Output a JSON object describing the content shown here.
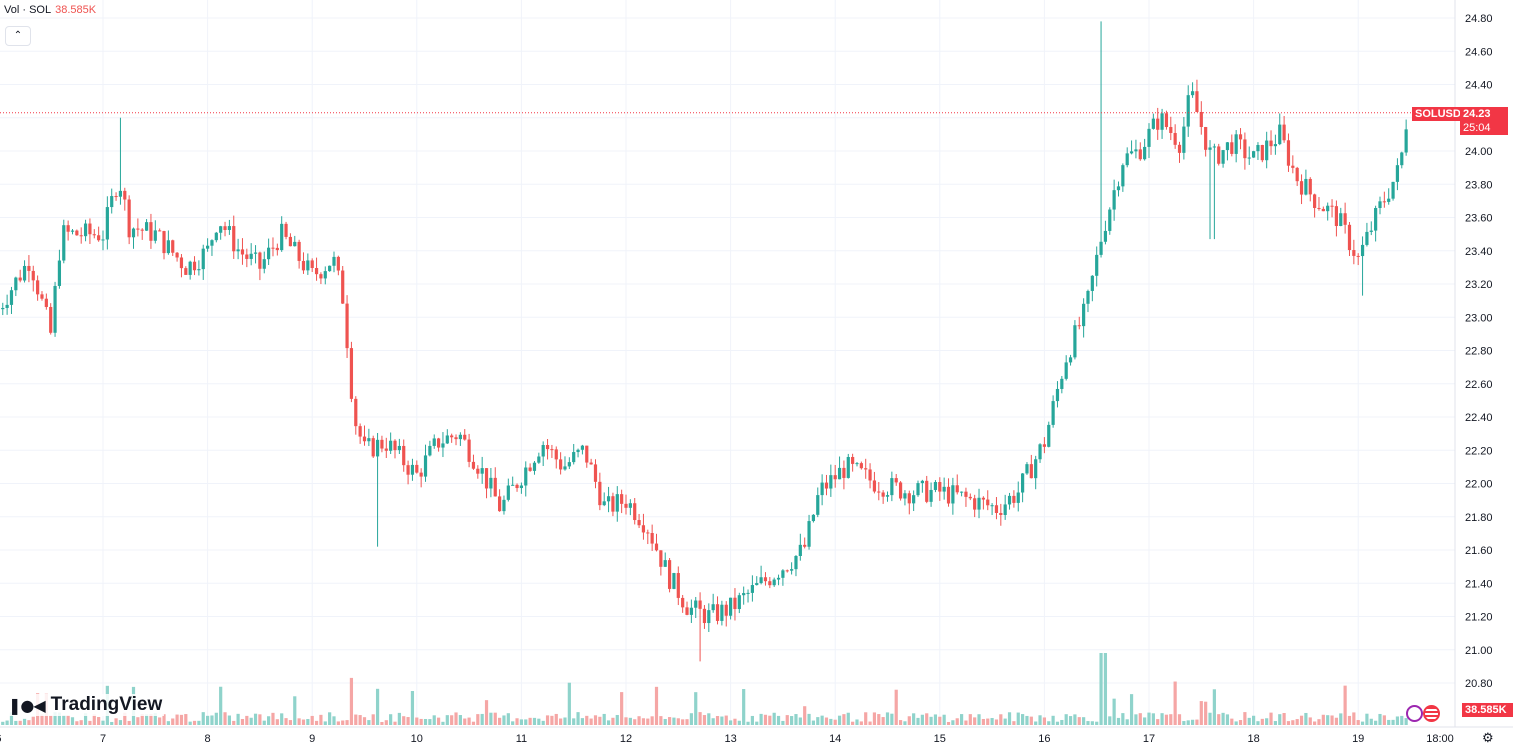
{
  "legend": {
    "label": "Vol · SOL",
    "value": "38.585K"
  },
  "collapse_icon": "chevron-up-icon",
  "logo": {
    "text": "TradingView",
    "icon": "tradingview-logo-icon"
  },
  "price_badge": {
    "symbol": "SOLUSD",
    "price": "24.23",
    "countdown": "25:04"
  },
  "volume_badge": "38.585K",
  "settings_icon": "gear-icon",
  "colors": {
    "up": "#26a69a",
    "down": "#ef5350",
    "up_vol": "#8fd3cb",
    "down_vol": "#f5a6a5",
    "grid": "#f0f3fa",
    "price_line": "#f23645"
  },
  "chart_data": {
    "type": "candlestick",
    "symbol": "SOLUSD",
    "y_ticks": [
      "24.80",
      "24.60",
      "24.40",
      "24.20",
      "24.00",
      "23.80",
      "23.60",
      "23.40",
      "23.20",
      "23.00",
      "22.80",
      "22.60",
      "22.40",
      "22.20",
      "22.00",
      "21.80",
      "21.60",
      "21.40",
      "21.20",
      "21.00",
      "20.80"
    ],
    "ylim": [
      20.8,
      24.8
    ],
    "x_ticks": [
      "6",
      "7",
      "8",
      "9",
      "10",
      "11",
      "12",
      "13",
      "14",
      "15",
      "16",
      "17",
      "18",
      "19",
      "18:00"
    ],
    "current_price": 24.23,
    "grid": true,
    "close_path": [
      [
        6.0,
        23.05
      ],
      [
        6.3,
        23.35
      ],
      [
        6.5,
        22.9
      ],
      [
        6.6,
        23.5
      ],
      [
        7.0,
        23.5
      ],
      [
        7.15,
        23.85
      ],
      [
        7.25,
        23.55
      ],
      [
        7.5,
        23.5
      ],
      [
        7.8,
        23.3
      ],
      [
        8.0,
        23.4
      ],
      [
        8.1,
        23.6
      ],
      [
        8.3,
        23.4
      ],
      [
        8.5,
        23.3
      ],
      [
        8.7,
        23.5
      ],
      [
        9.0,
        23.25
      ],
      [
        9.2,
        23.35
      ],
      [
        9.3,
        23.1
      ],
      [
        9.4,
        22.4
      ],
      [
        9.5,
        22.2
      ],
      [
        9.7,
        22.25
      ],
      [
        10.0,
        22.05
      ],
      [
        10.2,
        22.25
      ],
      [
        10.4,
        22.3
      ],
      [
        10.6,
        22.1
      ],
      [
        10.8,
        21.85
      ],
      [
        11.0,
        22.05
      ],
      [
        11.2,
        22.25
      ],
      [
        11.4,
        22.1
      ],
      [
        11.6,
        22.2
      ],
      [
        11.8,
        21.85
      ],
      [
        12.0,
        21.9
      ],
      [
        12.2,
        21.75
      ],
      [
        12.4,
        21.45
      ],
      [
        12.6,
        21.25
      ],
      [
        12.8,
        21.2
      ],
      [
        13.0,
        21.25
      ],
      [
        13.2,
        21.35
      ],
      [
        13.5,
        21.5
      ],
      [
        13.7,
        21.6
      ],
      [
        13.85,
        21.95
      ],
      [
        14.1,
        22.1
      ],
      [
        14.4,
        22.0
      ],
      [
        14.7,
        21.95
      ],
      [
        15.0,
        21.95
      ],
      [
        15.3,
        21.9
      ],
      [
        15.55,
        21.85
      ],
      [
        15.75,
        21.95
      ],
      [
        16.0,
        22.25
      ],
      [
        16.2,
        22.75
      ],
      [
        16.4,
        23.05
      ],
      [
        16.55,
        23.5
      ],
      [
        16.75,
        23.95
      ],
      [
        16.9,
        24.0
      ],
      [
        17.1,
        24.2
      ],
      [
        17.3,
        24.05
      ],
      [
        17.4,
        24.35
      ],
      [
        17.6,
        23.95
      ],
      [
        17.8,
        24.05
      ],
      [
        18.0,
        23.95
      ],
      [
        18.25,
        24.1
      ],
      [
        18.4,
        23.85
      ],
      [
        18.6,
        23.7
      ],
      [
        18.8,
        23.6
      ],
      [
        19.0,
        23.35
      ],
      [
        19.2,
        23.65
      ],
      [
        19.4,
        23.9
      ],
      [
        19.47,
        24.23
      ]
    ],
    "volume_spike": {
      "x": 16.53,
      "value": 38.585
    }
  }
}
